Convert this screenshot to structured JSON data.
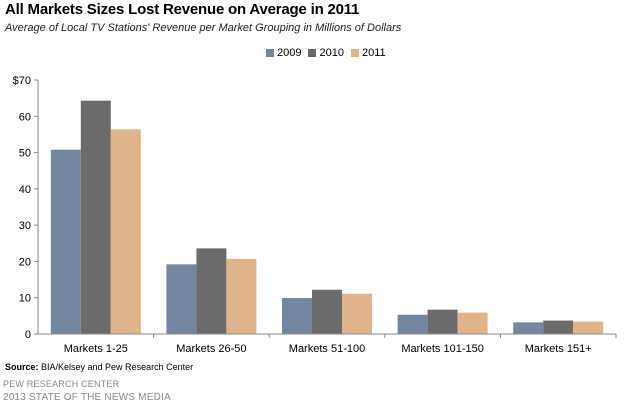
{
  "header": {
    "title": "All Markets  Sizes Lost Revenue  on Average  in 2011",
    "subtitle": "Average of Local TV Stations' Revenue per Market Grouping in Millions  of Dollars"
  },
  "footer": {
    "source_label": "Source:",
    "source_text": " BIA/Kelsey and Pew Research Center",
    "org": "PEW RESEARCH CENTER",
    "report": "2013 STATE OF THE NEWS MEDIA"
  },
  "chart_data": {
    "type": "bar",
    "categories": [
      "Markets 1-25",
      "Markets 26-50",
      "Markets 51-100",
      "Markets 101-150",
      "Markets 151+"
    ],
    "series": [
      {
        "name": "2009",
        "color": "#7586a0",
        "values": [
          50.8,
          19.2,
          9.9,
          5.3,
          3.2
        ]
      },
      {
        "name": "2010",
        "color": "#6b6b6b",
        "values": [
          64.3,
          23.6,
          12.2,
          6.7,
          3.7
        ]
      },
      {
        "name": "2011",
        "color": "#e0b48a",
        "values": [
          56.4,
          20.7,
          11.1,
          5.9,
          3.4
        ]
      }
    ],
    "yticks": [
      "0",
      "10",
      "20",
      "30",
      "40",
      "50",
      "60",
      "$70"
    ],
    "ylim": [
      0,
      70
    ],
    "grid": false,
    "legend_position": "top-center"
  }
}
